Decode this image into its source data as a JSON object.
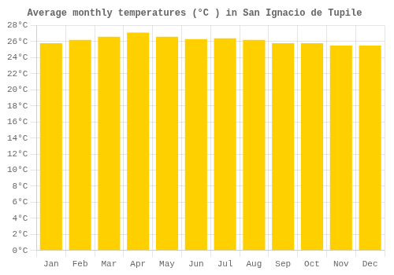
{
  "chart_data": {
    "type": "bar",
    "title": "Average monthly temperatures (°C ) in San Ignacio de Tupile",
    "categories": [
      "Jan",
      "Feb",
      "Mar",
      "Apr",
      "May",
      "Jun",
      "Jul",
      "Aug",
      "Sep",
      "Oct",
      "Nov",
      "Dec"
    ],
    "values": [
      25.8,
      26.2,
      26.6,
      27.1,
      26.6,
      26.3,
      26.4,
      26.2,
      25.8,
      25.8,
      25.5,
      25.5
    ],
    "color": "#FFD000",
    "ylim": [
      0,
      28
    ],
    "yticks": [
      {
        "value": 0,
        "label": "0°C"
      },
      {
        "value": 2,
        "label": "2°C"
      },
      {
        "value": 4,
        "label": "4°C"
      },
      {
        "value": 6,
        "label": "6°C"
      },
      {
        "value": 8,
        "label": "8°C"
      },
      {
        "value": 10,
        "label": "10°C"
      },
      {
        "value": 12,
        "label": "12°C"
      },
      {
        "value": 14,
        "label": "14°C"
      },
      {
        "value": 16,
        "label": "16°C"
      },
      {
        "value": 18,
        "label": "18°C"
      },
      {
        "value": 20,
        "label": "20°C"
      },
      {
        "value": 22,
        "label": "22°C"
      },
      {
        "value": 24,
        "label": "24°C"
      },
      {
        "value": 26,
        "label": "26°C"
      },
      {
        "value": 28,
        "label": "28°C"
      }
    ],
    "grid": true
  }
}
